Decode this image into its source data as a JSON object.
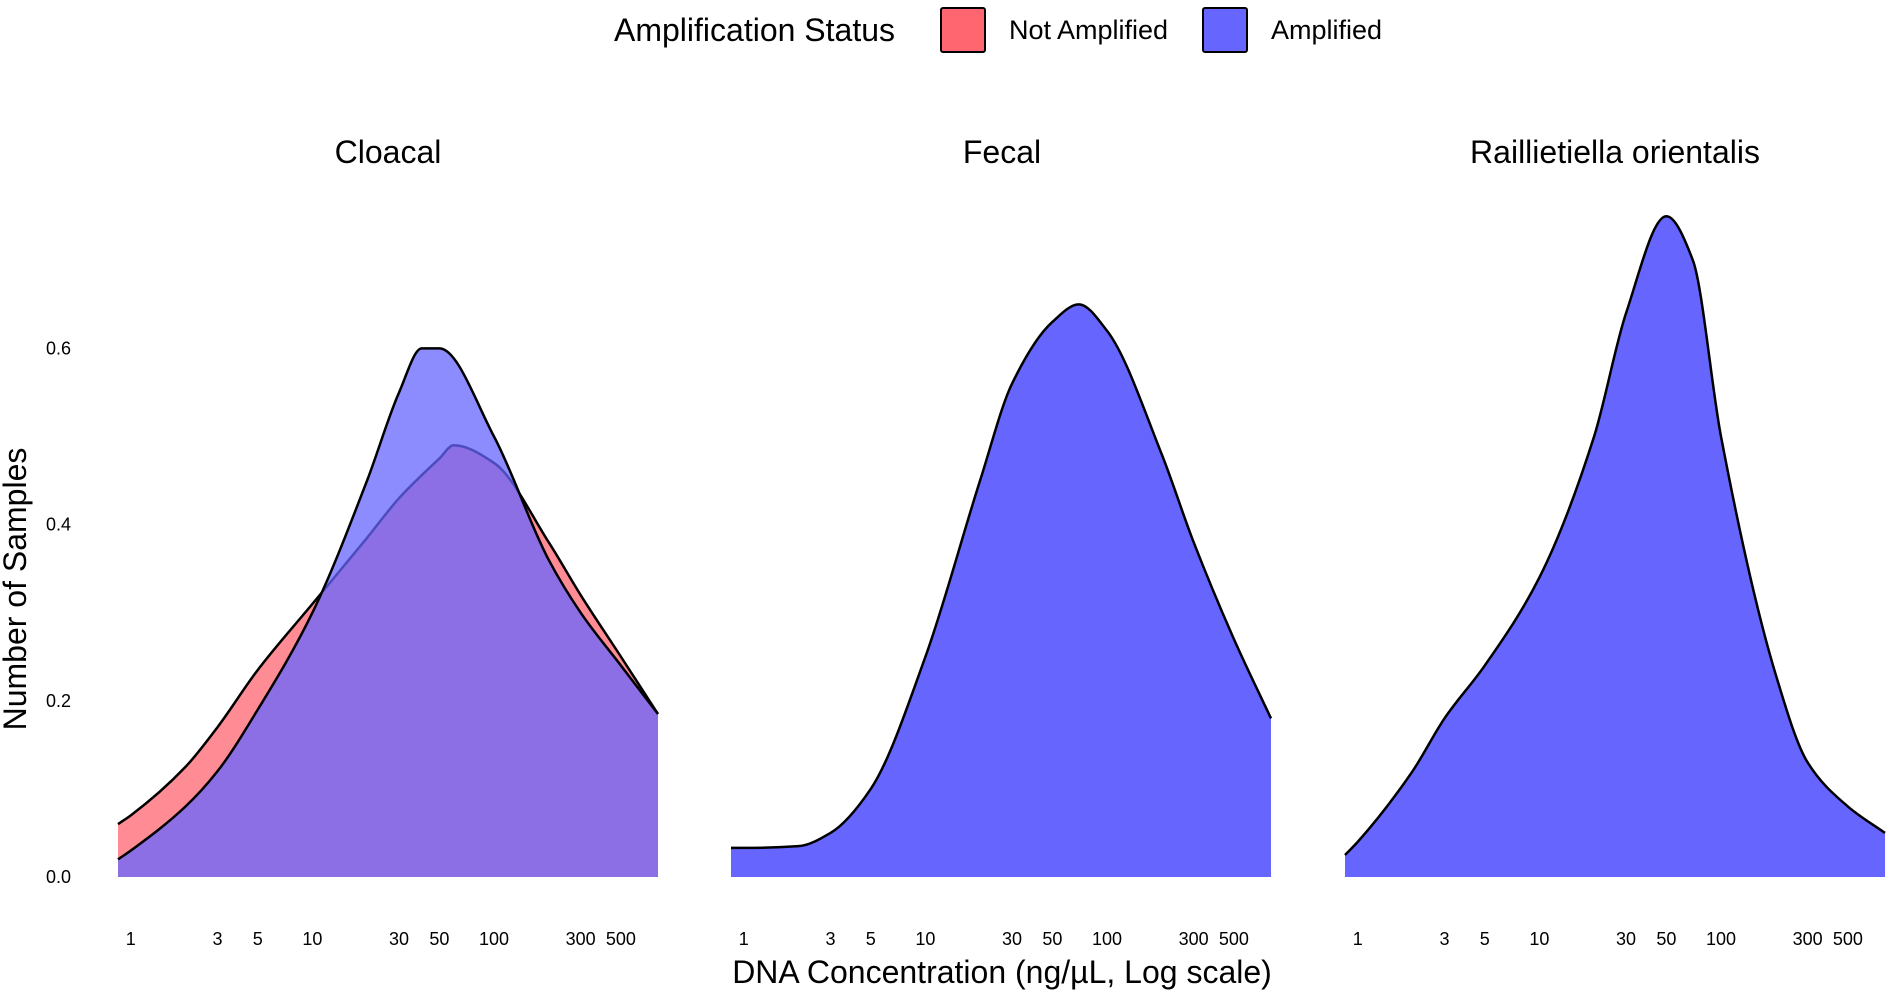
{
  "chart_data": {
    "type": "area",
    "subtype": "density",
    "xlabel": "DNA Concentration (ng/µL, Log scale)",
    "ylabel": "Number of Samples",
    "x_scale": "log10",
    "xlim": [
      0.85,
      800
    ],
    "ylim": [
      0,
      0.75
    ],
    "x_ticks": [
      1,
      3,
      5,
      10,
      30,
      50,
      100,
      300,
      500
    ],
    "y_ticks": [
      0.0,
      0.2,
      0.4,
      0.6
    ],
    "y_tick_labels": [
      "0.0",
      "0.2",
      "0.4",
      "0.6"
    ],
    "grid": false,
    "legend": {
      "title": "Amplification Status",
      "position": "top",
      "entries": [
        {
          "name": "Not Amplified",
          "color": "#ff6670"
        },
        {
          "name": "Amplified",
          "color": "#6666ff"
        }
      ]
    },
    "facets": [
      {
        "title": "Cloacal",
        "series": [
          {
            "name": "Not Amplified",
            "color": "#ff6670",
            "x": [
              0.85,
              1,
              2,
              3,
              5,
              10,
              20,
              30,
              50,
              60,
              100,
              200,
              300,
              500,
              800
            ],
            "y": [
              0.06,
              0.07,
              0.125,
              0.17,
              0.235,
              0.31,
              0.385,
              0.43,
              0.475,
              0.49,
              0.47,
              0.38,
              0.32,
              0.25,
              0.185
            ]
          },
          {
            "name": "Amplified",
            "color": "#6666ff",
            "x": [
              0.85,
              1,
              2,
              3,
              5,
              10,
              20,
              30,
              40,
              50,
              100,
              200,
              300,
              500,
              800
            ],
            "y": [
              0.02,
              0.03,
              0.08,
              0.12,
              0.19,
              0.3,
              0.45,
              0.55,
              0.6,
              0.6,
              0.5,
              0.36,
              0.3,
              0.24,
              0.185
            ]
          }
        ]
      },
      {
        "title": "Fecal",
        "series": [
          {
            "name": "Amplified",
            "color": "#6666ff",
            "x": [
              0.85,
              1,
              2,
              3,
              5,
              10,
              20,
              30,
              50,
              70,
              100,
              200,
              300,
              500,
              800
            ],
            "y": [
              0.033,
              0.033,
              0.035,
              0.05,
              0.1,
              0.25,
              0.45,
              0.56,
              0.63,
              0.65,
              0.62,
              0.48,
              0.38,
              0.27,
              0.18
            ]
          }
        ]
      },
      {
        "title": "Raillietiella orientalis",
        "series": [
          {
            "name": "Amplified",
            "color": "#6666ff",
            "x": [
              0.85,
              1,
              2,
              3,
              5,
              10,
              20,
              30,
              50,
              70,
              100,
              200,
              300,
              500,
              800
            ],
            "y": [
              0.025,
              0.04,
              0.12,
              0.18,
              0.24,
              0.34,
              0.5,
              0.64,
              0.75,
              0.7,
              0.5,
              0.23,
              0.13,
              0.08,
              0.05
            ]
          }
        ]
      }
    ]
  }
}
